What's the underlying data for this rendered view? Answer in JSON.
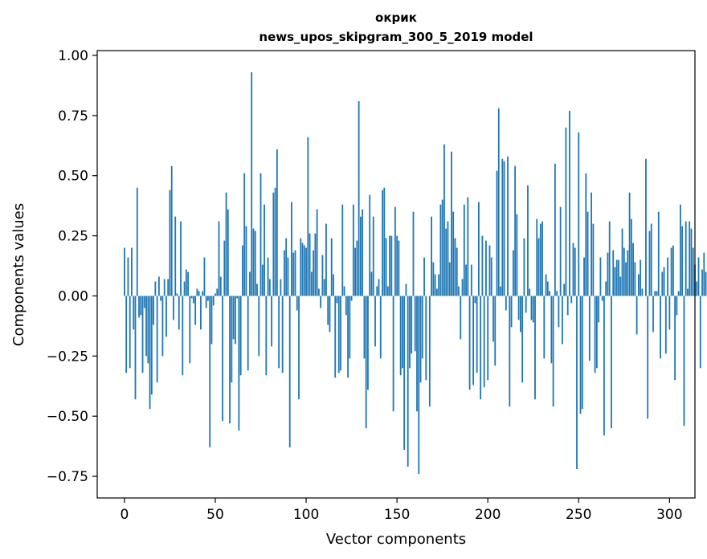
{
  "chart_data": {
    "type": "bar",
    "title_lines": [
      "окрик",
      "news_upos_skipgram_300_5_2019 model"
    ],
    "xlabel": "Vector components",
    "ylabel": "Components values",
    "xlim": [
      -15,
      314
    ],
    "ylim": [
      -0.84,
      1.02
    ],
    "xticks": [
      0,
      50,
      100,
      150,
      200,
      250,
      300
    ],
    "yticks": [
      -0.75,
      -0.5,
      -0.25,
      0.0,
      0.25,
      0.5,
      0.75,
      1.0
    ],
    "ytick_labels": [
      "−0.75",
      "−0.50",
      "−0.25",
      "0.00",
      "0.25",
      "0.50",
      "0.75",
      "1.00"
    ],
    "bar_color": "#1f77b4",
    "values": [
      0.2,
      -0.32,
      0.16,
      -0.3,
      0.2,
      -0.14,
      -0.43,
      0.45,
      -0.09,
      -0.08,
      -0.32,
      -0.05,
      -0.25,
      -0.28,
      -0.47,
      -0.41,
      -0.12,
      0.06,
      -0.36,
      0.08,
      -0.02,
      -0.25,
      0.07,
      -0.17,
      0.07,
      0.44,
      0.54,
      -0.1,
      0.33,
      0.01,
      -0.14,
      0.31,
      -0.33,
      0.06,
      0.11,
      0.1,
      -0.28,
      -0.01,
      -0.03,
      -0.12,
      0.03,
      0.02,
      -0.14,
      0.02,
      0.16,
      -0.05,
      -0.02,
      -0.63,
      -0.2,
      -0.04,
      0.01,
      0.03,
      0.31,
      0.08,
      -0.52,
      0.23,
      0.43,
      0.36,
      -0.53,
      -0.36,
      -0.18,
      -0.2,
      -0.01,
      -0.56,
      -0.33,
      0.21,
      0.51,
      0.29,
      -0.31,
      0.1,
      0.93,
      0.28,
      0.27,
      0.05,
      -0.25,
      0.51,
      0.13,
      0.38,
      -0.33,
      0.16,
      0.07,
      -0.21,
      0.43,
      0.45,
      0.61,
      -0.3,
      0.07,
      -0.32,
      0.19,
      0.24,
      0.16,
      -0.63,
      0.39,
      0.18,
      0.19,
      -0.06,
      -0.43,
      0.24,
      0.22,
      0.21,
      0.2,
      0.66,
      0.26,
      0.1,
      0.19,
      0.26,
      0.36,
      0.03,
      -0.05,
      0.17,
      0.07,
      0.3,
      -0.12,
      -0.15,
      0.24,
      0.09,
      -0.34,
      -0.03,
      -0.32,
      -0.31,
      0.38,
      0.04,
      -0.08,
      -0.34,
      -0.26,
      -0.02,
      0.38,
      0.2,
      0.23,
      0.81,
      0.33,
      0.36,
      -0.26,
      -0.55,
      -0.39,
      0.42,
      0.1,
      0.33,
      -0.21,
      0.04,
      0.07,
      -0.26,
      0.44,
      0.45,
      0.24,
      0.04,
      0.25,
      0.25,
      -0.48,
      0.37,
      0.25,
      0.23,
      -0.33,
      -0.3,
      -0.64,
      0.05,
      -0.71,
      -0.3,
      -0.24,
      0.35,
      -0.23,
      -0.48,
      -0.74,
      -0.36,
      -0.26,
      0.16,
      -0.35,
      0.0,
      -0.46,
      0.33,
      0.14,
      0.09,
      0.03,
      0.09,
      0.38,
      0.4,
      0.63,
      0.28,
      0.31,
      0.14,
      0.6,
      0.35,
      0.24,
      0.2,
      0.04,
      -0.18,
      0.07,
      0.38,
      0.13,
      0.41,
      -0.39,
      0.13,
      -0.37,
      -0.03,
      -0.32,
      0.39,
      -0.43,
      0.25,
      -0.38,
      0.23,
      -0.35,
      0.21,
      0.16,
      -0.19,
      -0.29,
      0.52,
      0.78,
      0.04,
      0.57,
      0.56,
      -0.06,
      0.58,
      -0.46,
      -0.13,
      0.19,
      0.54,
      0.34,
      -0.1,
      -0.15,
      -0.36,
      0.24,
      -0.07,
      0.46,
      0.03,
      -0.1,
      -0.11,
      -0.43,
      0.32,
      0.24,
      0.3,
      0.31,
      -0.26,
      0.09,
      0.06,
      0.02,
      -0.28,
      -0.46,
      0.55,
      0.02,
      -0.13,
      0.37,
      -0.2,
      0.05,
      0.7,
      -0.08,
      0.77,
      -0.03,
      0.22,
      0.2,
      -0.72,
      0.68,
      -0.49,
      -0.47,
      0.16,
      0.51,
      0.35,
      -0.27,
      0.43,
      0.3,
      -0.32,
      -0.3,
      -0.11,
      0.16,
      -0.02,
      -0.58,
      0.06,
      0.18,
      0.31,
      -0.55,
      0.19,
      0.12,
      0.15,
      0.15,
      0.08,
      0.28,
      0.2,
      0.14,
      0.19,
      0.43,
      0.32,
      0.22,
      0.14,
      -0.16,
      0.09,
      0.15,
      0.03,
      0.0,
      0.57,
      -0.51,
      0.27,
      0.3,
      -0.15,
      0.02,
      0.02,
      0.35,
      -0.26,
      0.1,
      0.12,
      -0.24,
      0.16,
      -0.14,
      0.2,
      0.21,
      -0.35,
      -0.08,
      0.02,
      0.38,
      0.29,
      -0.54,
      0.31,
      0.03,
      0.31,
      0.28,
      0.2,
      0.13,
      0.06,
      0.16,
      -0.3,
      0.11,
      0.18,
      0.1,
      0.0,
      0.0,
      0.0
    ]
  }
}
